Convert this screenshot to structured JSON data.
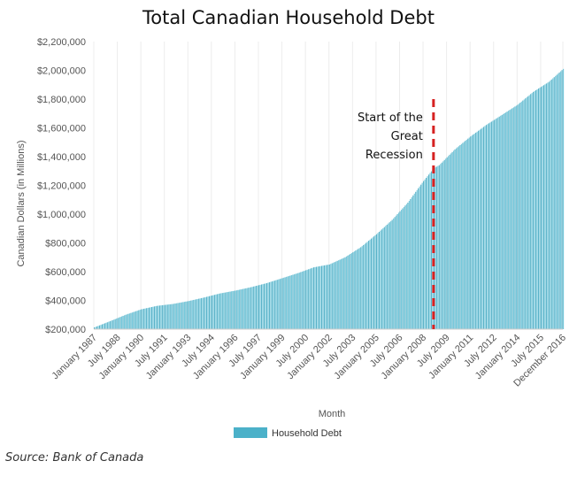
{
  "chart_data": {
    "type": "bar",
    "title": "Total Canadian Household Debt",
    "ylabel": "Canadian Dollars (in Millions)",
    "xlabel": "Month",
    "ylim": [
      200000,
      2200000
    ],
    "yticks": [
      "$200,000",
      "$400,000",
      "$600,000",
      "$800,000",
      "$1,000,000",
      "$1,200,000",
      "$1,400,000",
      "$1,600,000",
      "$1,800,000",
      "$2,000,000",
      "$2,200,000"
    ],
    "xticks": [
      "January 1987",
      "July 1988",
      "January 1990",
      "July 1991",
      "January 1993",
      "July 1994",
      "January 1996",
      "July 1997",
      "January 1999",
      "July 2000",
      "January 2002",
      "July 2003",
      "January 2005",
      "July 2006",
      "January 2008",
      "July 2009",
      "January 2011",
      "July 2012",
      "January 2014",
      "July 2015",
      "December 2016"
    ],
    "series": [
      {
        "name": "Household Debt",
        "color": "#4bb1c9"
      }
    ],
    "x_dates": [
      "1987-01",
      "1988-01",
      "1989-01",
      "1990-01",
      "1991-01",
      "1992-01",
      "1993-01",
      "1994-01",
      "1995-01",
      "1996-01",
      "1997-01",
      "1998-01",
      "1999-01",
      "2000-01",
      "2001-01",
      "2002-01",
      "2003-01",
      "2004-01",
      "2005-01",
      "2006-01",
      "2007-01",
      "2008-01",
      "2008-09",
      "2009-01",
      "2010-01",
      "2011-01",
      "2012-01",
      "2013-01",
      "2014-01",
      "2015-01",
      "2016-01",
      "2016-12"
    ],
    "values": [
      212000,
      255000,
      300000,
      338000,
      362000,
      375000,
      395000,
      420000,
      448000,
      468000,
      492000,
      520000,
      555000,
      590000,
      630000,
      650000,
      700000,
      770000,
      860000,
      960000,
      1080000,
      1230000,
      1320000,
      1340000,
      1450000,
      1540000,
      1620000,
      1690000,
      1760000,
      1850000,
      1920000,
      2010000
    ],
    "annotation": {
      "text_lines": [
        "Start of the",
        "Great",
        "Recession"
      ],
      "x_date": "2008-09",
      "color": "#d62222"
    },
    "legend_position": "bottom"
  },
  "source_text": "Source: Bank of Canada"
}
